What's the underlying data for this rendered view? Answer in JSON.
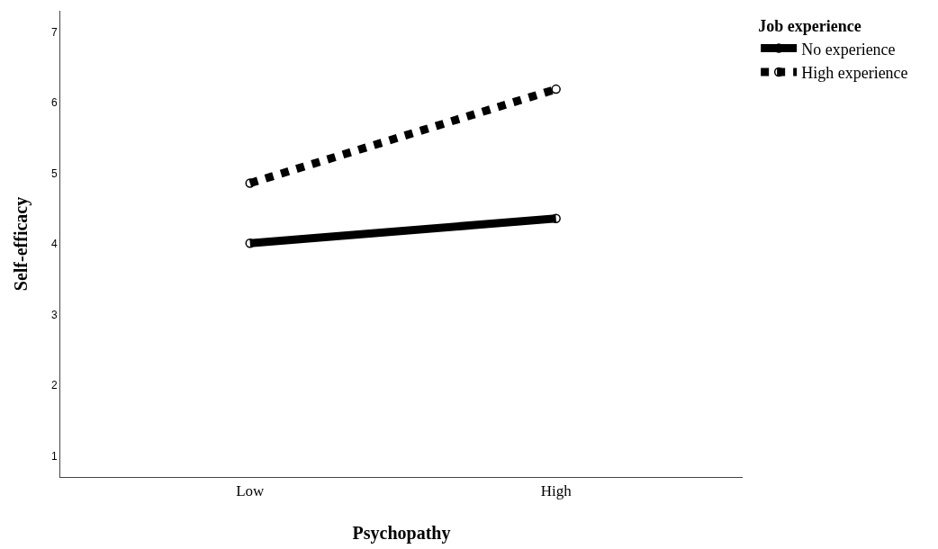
{
  "chart_data": {
    "type": "line",
    "xlabel": "Psychopathy",
    "ylabel": "Self-efficacy",
    "legend_title": "Job experience",
    "categories": [
      "Low",
      "High"
    ],
    "series": [
      {
        "name": "No experience",
        "color": "#000000",
        "values": [
          4.01,
          4.36
        ],
        "line_style": "solid"
      },
      {
        "name": "High experience",
        "color": "#000000",
        "values": [
          4.86,
          6.19
        ],
        "line_style": "dotted"
      }
    ],
    "ylim": [
      0.7,
      7.3
    ],
    "yticks": [
      1,
      2,
      3,
      4,
      5,
      6,
      7
    ],
    "grid": false,
    "legend": "top right",
    "marker": "circle"
  }
}
